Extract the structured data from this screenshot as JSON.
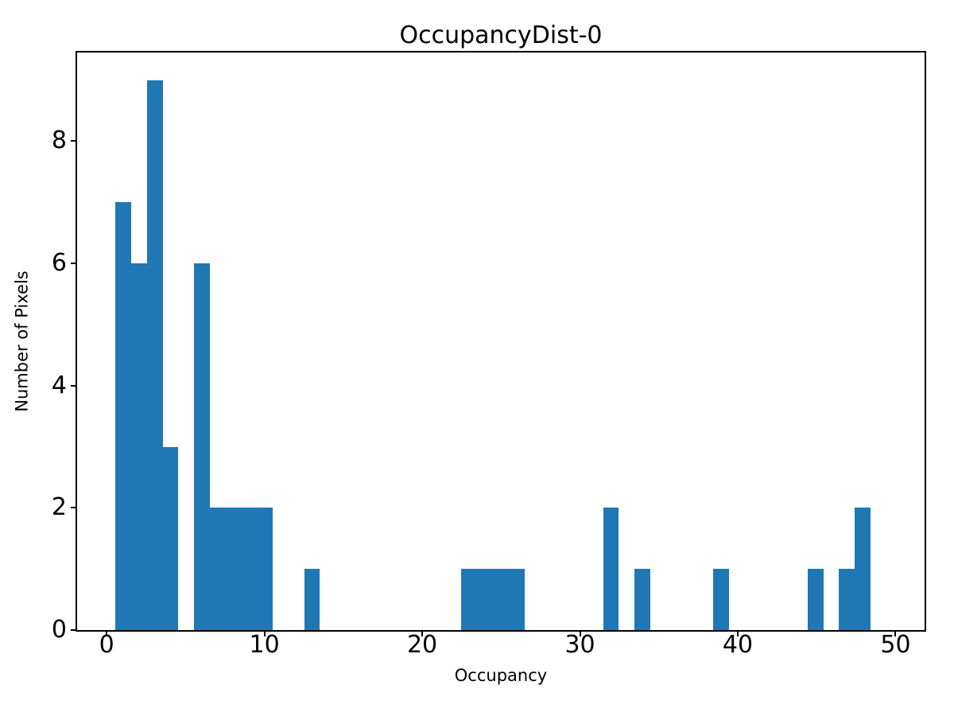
{
  "figure": {
    "title": "OccupancyDist-0",
    "xlabel": "Occupancy",
    "ylabel": "Number of Pixels",
    "background_color": "#ffffff"
  },
  "chart_data": {
    "type": "bar",
    "subtype": "histogram",
    "title": "OccupancyDist-0",
    "xlabel": "Occupancy",
    "ylabel": "Number of Pixels",
    "bar_color": "#1f77b4",
    "axis_color": "#000000",
    "grid": false,
    "legend": false,
    "xlim": [
      -1.87,
      51.84
    ],
    "ylim": [
      0,
      9.45
    ],
    "xticks": [
      0,
      10,
      20,
      30,
      40,
      50
    ],
    "yticks": [
      0,
      2,
      4,
      6,
      8
    ],
    "bin_width": 1.0,
    "total_count": 52,
    "bins": [
      {
        "start": 0.55,
        "end": 1.55,
        "count": 7
      },
      {
        "start": 1.55,
        "end": 2.55,
        "count": 6
      },
      {
        "start": 2.55,
        "end": 3.55,
        "count": 9
      },
      {
        "start": 3.55,
        "end": 4.54,
        "count": 3
      },
      {
        "start": 5.54,
        "end": 6.54,
        "count": 6
      },
      {
        "start": 6.54,
        "end": 7.53,
        "count": 2
      },
      {
        "start": 7.53,
        "end": 8.53,
        "count": 2
      },
      {
        "start": 8.53,
        "end": 9.53,
        "count": 2
      },
      {
        "start": 9.53,
        "end": 10.52,
        "count": 2
      },
      {
        "start": 12.52,
        "end": 13.52,
        "count": 1
      },
      {
        "start": 22.49,
        "end": 23.49,
        "count": 1
      },
      {
        "start": 23.49,
        "end": 24.48,
        "count": 1
      },
      {
        "start": 24.48,
        "end": 25.48,
        "count": 1
      },
      {
        "start": 25.48,
        "end": 26.48,
        "count": 1
      },
      {
        "start": 31.46,
        "end": 32.46,
        "count": 2
      },
      {
        "start": 33.45,
        "end": 34.45,
        "count": 1
      },
      {
        "start": 38.44,
        "end": 39.44,
        "count": 1
      },
      {
        "start": 44.42,
        "end": 45.42,
        "count": 1
      },
      {
        "start": 46.42,
        "end": 47.41,
        "count": 1
      },
      {
        "start": 47.41,
        "end": 48.41,
        "count": 2
      }
    ]
  }
}
